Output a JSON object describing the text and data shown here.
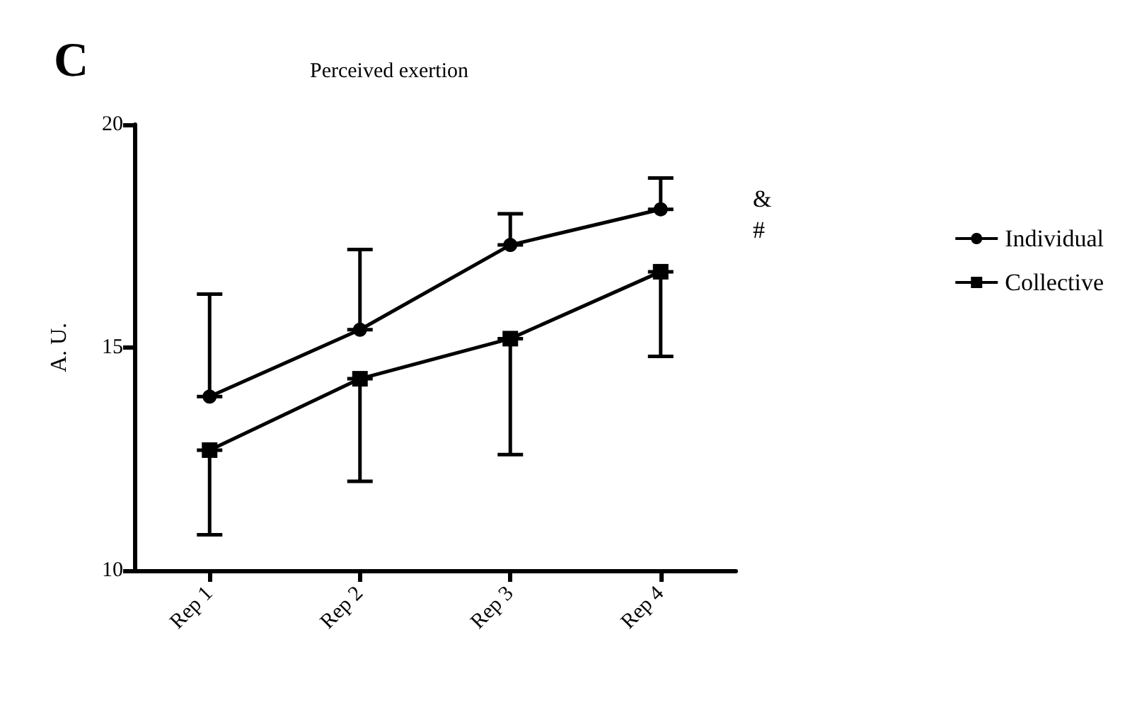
{
  "chart_data": {
    "type": "line",
    "title": "Perceived exertion",
    "ylabel": "A. U.",
    "annotations": [
      "C",
      "&",
      "#"
    ],
    "categories": [
      "Rep 1",
      "Rep 2",
      "Rep 3",
      "Rep 4"
    ],
    "series": [
      {
        "name": "Individual",
        "color": "#000000",
        "marker": "circle",
        "values": [
          13.9,
          15.4,
          17.3,
          18.1
        ],
        "errors": [
          [
            13.9,
            16.2
          ],
          [
            15.4,
            17.2
          ],
          [
            17.3,
            18.0
          ],
          [
            18.1,
            18.8
          ]
        ]
      },
      {
        "name": "Collective",
        "color": "#000000",
        "marker": "square",
        "values": [
          12.7,
          14.3,
          15.2,
          16.7
        ],
        "errors": [
          [
            10.8,
            12.7
          ],
          [
            12.0,
            14.3
          ],
          [
            12.6,
            15.2
          ],
          [
            14.8,
            16.7
          ]
        ]
      }
    ],
    "ylim": [
      10,
      20
    ],
    "yticks": [
      10,
      15,
      20
    ],
    "grid": false,
    "legend": "right",
    "line_style": "solid"
  }
}
